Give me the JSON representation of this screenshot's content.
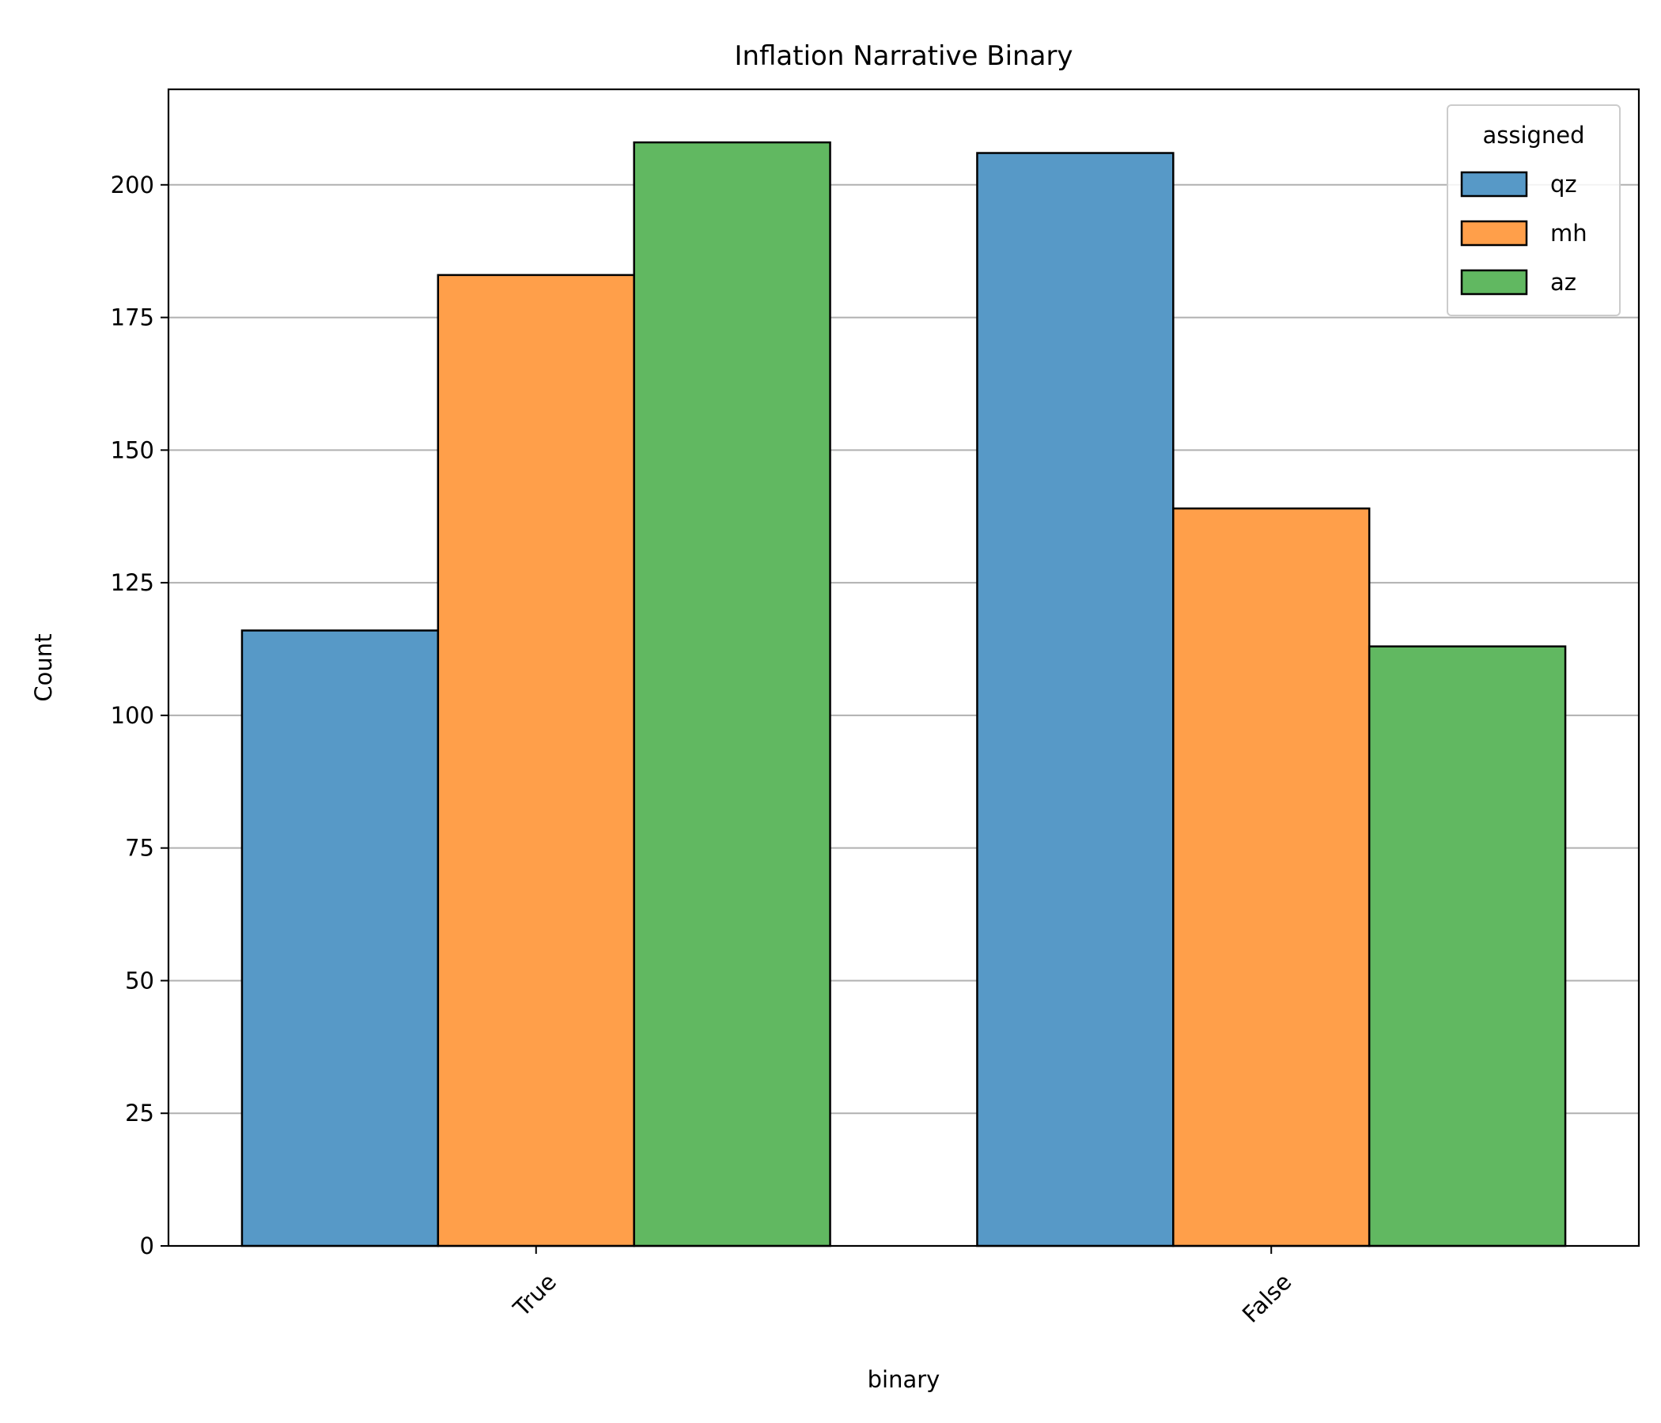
{
  "chart_data": {
    "type": "bar",
    "title": "Inflation Narrative Binary",
    "xlabel": "binary",
    "ylabel": "Count",
    "categories": [
      "True",
      "False"
    ],
    "ylim": [
      0,
      218
    ],
    "yticks": [
      0,
      25,
      50,
      75,
      100,
      125,
      150,
      175,
      200
    ],
    "grid": "horizontal",
    "legend": {
      "title": "assigned",
      "placement": "top-right"
    },
    "series": [
      {
        "name": "qz",
        "color": "#5799c7",
        "values": [
          116,
          206
        ]
      },
      {
        "name": "mh",
        "color": "#ff9f4a",
        "values": [
          183,
          139
        ]
      },
      {
        "name": "az",
        "color": "#61b861",
        "values": [
          208,
          113
        ]
      }
    ]
  }
}
